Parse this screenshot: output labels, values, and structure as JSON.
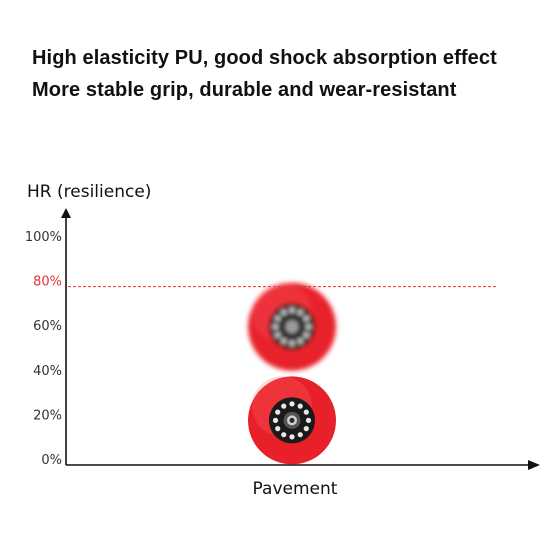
{
  "header": {
    "line1": "High elasticity PU, good shock absorption effect",
    "line2": "More stable grip, durable and wear-resistant"
  },
  "colors": {
    "accent": "#e8302e",
    "wheel_red": "#e8202a",
    "wheel_hub": "#1a1a1a",
    "axis": "#111111"
  },
  "chart_data": {
    "type": "scatter",
    "ylabel": "HR (resilience)",
    "xlabel": "Pavement",
    "ylim": [
      0,
      100
    ],
    "y_ticks": [
      {
        "value": 0,
        "label": "0%"
      },
      {
        "value": 20,
        "label": "20%"
      },
      {
        "value": 40,
        "label": "40%"
      },
      {
        "value": 60,
        "label": "60%"
      },
      {
        "value": 80,
        "label": "80%",
        "highlight": true
      },
      {
        "value": 100,
        "label": "100%"
      }
    ],
    "reference_line": {
      "value": 80,
      "style": "dashed",
      "color": "#e8302e"
    },
    "points": [
      {
        "category": "Pavement",
        "y": 62,
        "marker": "wheel-icon",
        "motion_blur": true
      },
      {
        "category": "Pavement",
        "y": 20,
        "marker": "wheel-icon",
        "motion_blur": false
      }
    ],
    "grid": false
  }
}
